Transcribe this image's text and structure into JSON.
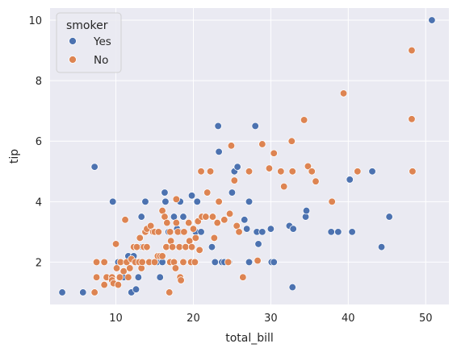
{
  "chart_data": {
    "type": "scatter",
    "xlabel": "total_bill",
    "ylabel": "tip",
    "xlim": [
      1.5,
      53
    ],
    "ylim": [
      0.6,
      10.4
    ],
    "xticks": [
      10,
      20,
      30,
      40,
      50
    ],
    "yticks": [
      2,
      4,
      6,
      8,
      10
    ],
    "grid": true,
    "legend": {
      "title": "smoker",
      "placement": "top-left"
    },
    "series": [
      {
        "name": "Yes",
        "color": "#4c72b0",
        "points": [
          [
            3.07,
            1.0
          ],
          [
            5.75,
            1.0
          ],
          [
            7.25,
            5.15
          ],
          [
            9.6,
            4.0
          ],
          [
            10.3,
            2.0
          ],
          [
            11.0,
            1.5
          ],
          [
            11.6,
            2.2
          ],
          [
            12.0,
            1.0
          ],
          [
            12.3,
            2.2
          ],
          [
            12.6,
            1.1
          ],
          [
            12.9,
            1.5
          ],
          [
            13.0,
            2.0
          ],
          [
            13.3,
            3.5
          ],
          [
            13.4,
            2.5
          ],
          [
            13.8,
            4.0
          ],
          [
            14.5,
            2.0
          ],
          [
            15.0,
            3.0
          ],
          [
            15.3,
            2.0
          ],
          [
            15.7,
            1.5
          ],
          [
            16.0,
            2.0
          ],
          [
            16.3,
            4.3
          ],
          [
            16.4,
            4.0
          ],
          [
            16.5,
            2.5
          ],
          [
            16.8,
            3.0
          ],
          [
            17.3,
            2.0
          ],
          [
            17.5,
            3.5
          ],
          [
            17.9,
            3.1
          ],
          [
            18.2,
            3.0
          ],
          [
            18.3,
            4.0
          ],
          [
            18.7,
            3.5
          ],
          [
            19.8,
            4.2
          ],
          [
            20.3,
            3.0
          ],
          [
            20.5,
            4.0
          ],
          [
            21.0,
            3.0
          ],
          [
            21.5,
            3.5
          ],
          [
            22.4,
            2.5
          ],
          [
            22.8,
            2.0
          ],
          [
            23.2,
            6.5
          ],
          [
            23.3,
            5.65
          ],
          [
            23.3,
            4.0
          ],
          [
            23.7,
            2.0
          ],
          [
            24.0,
            2.0
          ],
          [
            24.6,
            2.0
          ],
          [
            25.0,
            4.3
          ],
          [
            25.3,
            5.0
          ],
          [
            25.7,
            5.15
          ],
          [
            26.6,
            3.4
          ],
          [
            26.9,
            3.1
          ],
          [
            27.2,
            2.0
          ],
          [
            27.2,
            4.0
          ],
          [
            28.0,
            6.5
          ],
          [
            28.2,
            3.0
          ],
          [
            28.4,
            2.6
          ],
          [
            28.9,
            3.0
          ],
          [
            30.0,
            3.1
          ],
          [
            30.1,
            2.0
          ],
          [
            30.4,
            2.0
          ],
          [
            32.4,
            3.2
          ],
          [
            32.8,
            1.17
          ],
          [
            32.9,
            3.1
          ],
          [
            34.5,
            3.5
          ],
          [
            34.6,
            3.7
          ],
          [
            37.8,
            3.0
          ],
          [
            38.7,
            3.0
          ],
          [
            40.2,
            4.73
          ],
          [
            40.5,
            3.0
          ],
          [
            43.1,
            5.0
          ],
          [
            44.3,
            2.5
          ],
          [
            45.3,
            3.5
          ],
          [
            50.8,
            10.0
          ]
        ]
      },
      {
        "name": "No",
        "color": "#dd8452",
        "points": [
          [
            7.25,
            1.0
          ],
          [
            7.5,
            2.0
          ],
          [
            7.5,
            1.5
          ],
          [
            8.5,
            1.25
          ],
          [
            8.5,
            2.0
          ],
          [
            8.8,
            1.5
          ],
          [
            9.5,
            1.5
          ],
          [
            9.5,
            1.4
          ],
          [
            9.7,
            1.3
          ],
          [
            10.0,
            2.6
          ],
          [
            10.1,
            1.8
          ],
          [
            10.3,
            1.25
          ],
          [
            10.5,
            1.5
          ],
          [
            10.6,
            2.0
          ],
          [
            11.0,
            1.7
          ],
          [
            11.2,
            3.4
          ],
          [
            11.4,
            2.0
          ],
          [
            11.6,
            1.5
          ],
          [
            11.8,
            1.8
          ],
          [
            12.0,
            2.1
          ],
          [
            12.3,
            2.5
          ],
          [
            12.5,
            2.0
          ],
          [
            12.7,
            2.5
          ],
          [
            13.0,
            2.0
          ],
          [
            13.1,
            2.8
          ],
          [
            13.3,
            1.8
          ],
          [
            13.4,
            2.0
          ],
          [
            13.6,
            2.5
          ],
          [
            13.8,
            3.0
          ],
          [
            14.0,
            3.1
          ],
          [
            14.0,
            2.5
          ],
          [
            14.3,
            2.0
          ],
          [
            14.5,
            3.2
          ],
          [
            14.8,
            3.0
          ],
          [
            15.0,
            2.0
          ],
          [
            15.0,
            3.0
          ],
          [
            15.4,
            2.2
          ],
          [
            15.5,
            3.0
          ],
          [
            15.7,
            2.2
          ],
          [
            16.0,
            2.2
          ],
          [
            16.0,
            3.7
          ],
          [
            16.3,
            3.5
          ],
          [
            16.5,
            2.5
          ],
          [
            16.6,
            3.3
          ],
          [
            16.9,
            1.0
          ],
          [
            17.0,
            2.0
          ],
          [
            17.0,
            3.0
          ],
          [
            17.1,
            2.7
          ],
          [
            17.3,
            2.5
          ],
          [
            17.5,
            2.0
          ],
          [
            17.7,
            1.8
          ],
          [
            17.8,
            3.3
          ],
          [
            17.8,
            4.08
          ],
          [
            18.0,
            3.0
          ],
          [
            18.2,
            2.5
          ],
          [
            18.3,
            1.5
          ],
          [
            18.4,
            1.4
          ],
          [
            18.7,
            2.0
          ],
          [
            18.8,
            3.0
          ],
          [
            19.0,
            2.5
          ],
          [
            19.4,
            3.3
          ],
          [
            19.5,
            2.7
          ],
          [
            19.7,
            2.0
          ],
          [
            19.8,
            2.5
          ],
          [
            20.0,
            3.1
          ],
          [
            20.2,
            2.0
          ],
          [
            20.3,
            2.8
          ],
          [
            20.6,
            3.35
          ],
          [
            20.8,
            2.4
          ],
          [
            21.0,
            5.0
          ],
          [
            21.1,
            3.5
          ],
          [
            21.6,
            3.5
          ],
          [
            21.8,
            4.3
          ],
          [
            22.2,
            5.0
          ],
          [
            22.5,
            3.5
          ],
          [
            22.7,
            2.8
          ],
          [
            23.1,
            3.3
          ],
          [
            23.3,
            4.0
          ],
          [
            24.0,
            3.4
          ],
          [
            24.5,
            2.0
          ],
          [
            24.7,
            3.6
          ],
          [
            24.9,
            5.85
          ],
          [
            25.3,
            4.7
          ],
          [
            25.6,
            3.2
          ],
          [
            25.9,
            3.0
          ],
          [
            26.4,
            1.5
          ],
          [
            27.2,
            5.0
          ],
          [
            28.3,
            2.05
          ],
          [
            28.9,
            5.9
          ],
          [
            29.8,
            5.1
          ],
          [
            30.4,
            5.6
          ],
          [
            31.3,
            5.0
          ],
          [
            31.7,
            4.5
          ],
          [
            32.7,
            6.0
          ],
          [
            32.8,
            5.0
          ],
          [
            34.3,
            6.7
          ],
          [
            34.8,
            5.17
          ],
          [
            35.3,
            5.0
          ],
          [
            35.8,
            4.67
          ],
          [
            37.9,
            4.0
          ],
          [
            39.4,
            7.58
          ],
          [
            41.2,
            5.0
          ],
          [
            48.2,
            9.0
          ],
          [
            48.2,
            6.73
          ],
          [
            48.3,
            5.0
          ]
        ]
      }
    ]
  }
}
